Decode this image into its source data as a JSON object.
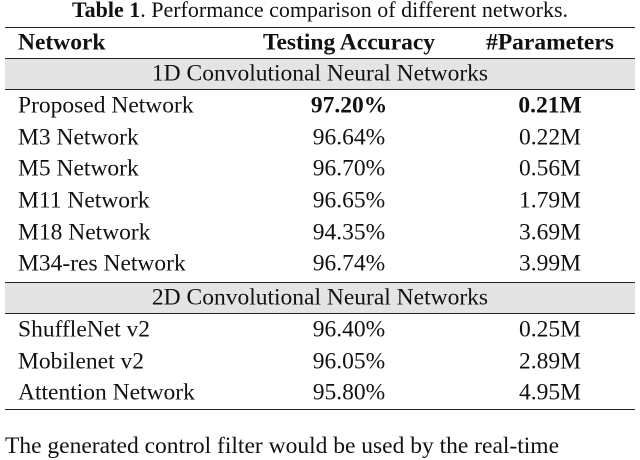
{
  "caption": {
    "label": "Table 1",
    "text": ". Performance comparison of different networks."
  },
  "table": {
    "header": [
      "Network",
      "Testing Accuracy",
      "#Parameters"
    ],
    "sections": [
      {
        "title": "1D Convolutional Neural Networks",
        "rows": [
          [
            "Proposed Network",
            "97.20%",
            "0.21M"
          ],
          [
            "M3 Network",
            "96.64%",
            "0.22M"
          ],
          [
            "M5 Network",
            "96.70%",
            "0.56M"
          ],
          [
            "M11 Network",
            "96.65%",
            "1.79M"
          ],
          [
            "M18 Network",
            "94.35%",
            "3.69M"
          ],
          [
            "M34-res Network",
            "96.74%",
            "3.99M"
          ]
        ]
      },
      {
        "title": "2D Convolutional Neural Networks",
        "rows": [
          [
            "ShuffleNet v2",
            "96.40%",
            "0.25M"
          ],
          [
            "Mobilenet v2",
            "96.05%",
            "2.89M"
          ],
          [
            "Attention Network",
            "95.80%",
            "4.95M"
          ]
        ]
      }
    ]
  },
  "body_text": "The generated control filter would be used by the real-time"
}
